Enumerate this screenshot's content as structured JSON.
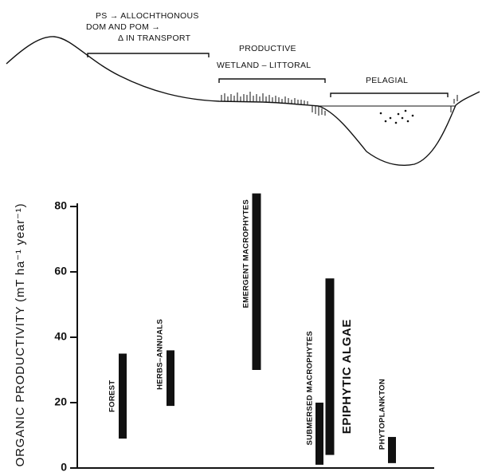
{
  "diagram": {
    "labels": [
      "PS → ALLOCHTHONOUS",
      "DOM AND POM →",
      "Δ IN TRANSPORT",
      "PRODUCTIVE",
      "WETLAND – LITTORAL",
      "PELAGIAL"
    ]
  },
  "chart_data": {
    "type": "range_bar",
    "y_label": "ORGANIC PRODUCTIVITY  (mT ha⁻¹ year⁻¹)",
    "categories": [
      "FOREST",
      "HERBS–ANNUALS",
      "EMERGENT MACROPHYTES",
      "SUBMERSED MACROPHYTES",
      "EPIPHYTIC ALGAE",
      "PHYTOPLANKTON"
    ],
    "low": [
      9,
      19,
      30,
      1,
      4,
      1.5
    ],
    "high": [
      35,
      36,
      84,
      20,
      58,
      9.5
    ],
    "color": "#111111",
    "ylim": [
      0,
      80
    ],
    "yticks": [
      0,
      20,
      40,
      60,
      80
    ]
  }
}
